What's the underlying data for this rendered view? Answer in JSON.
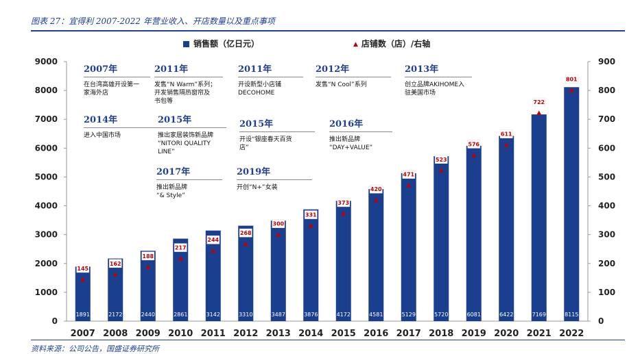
{
  "header": {
    "title": "图表 27：宜得利 2007-2022 年营业收入、开店数量以及重点事项"
  },
  "footer": {
    "source": "资料来源：公司公告，国盛证券研究所"
  },
  "legend": {
    "bar_label": "销售额（亿日元）",
    "line_label": "店铺数（店）/右轴"
  },
  "colors": {
    "bar": "#1a3f8f",
    "marker": "#c00000",
    "title": "#1f3f8f"
  },
  "chart_data": {
    "type": "bar",
    "title": "宜得利 2007-2022 年营业收入、开店数量以及重点事项",
    "categories": [
      "2007",
      "2008",
      "2009",
      "2010",
      "2011",
      "2012",
      "2013",
      "2014",
      "2015",
      "2016",
      "2017",
      "2018",
      "2019",
      "2020",
      "2021",
      "2022"
    ],
    "series": [
      {
        "name": "销售额（亿日元）",
        "axis": "left",
        "type": "bar",
        "values": [
          1891,
          2172,
          2440,
          2861,
          3142,
          3310,
          3487,
          3876,
          4172,
          4581,
          5129,
          5720,
          6081,
          6422,
          7169,
          8115
        ]
      },
      {
        "name": "店铺数（店）",
        "axis": "right",
        "type": "marker",
        "values": [
          145,
          162,
          188,
          217,
          244,
          268,
          300,
          331,
          373,
          420,
          471,
          523,
          576,
          611,
          722,
          801
        ]
      }
    ],
    "ylim_left": [
      0,
      9000
    ],
    "ylim_right": [
      0,
      900
    ],
    "yticks_left": [
      "0",
      "1000",
      "2000",
      "3000",
      "4000",
      "5000",
      "6000",
      "7000",
      "8000",
      "9000"
    ],
    "yticks_right": [
      "0",
      "100",
      "200",
      "300",
      "400",
      "500",
      "600",
      "700",
      "800",
      "900"
    ],
    "annotations": [
      {
        "year": "2007年",
        "text": "在台湾高雄开设第一\n家海外店"
      },
      {
        "year": "2011年",
        "text": "发售“N Warm”系列；\n开发销售隔热窗帘及\n书包等"
      },
      {
        "year": "2011年",
        "text": "开设新型小店铺\nDECOHOME"
      },
      {
        "year": "2012年",
        "text": "发售“N Cool”系列"
      },
      {
        "year": "2013年",
        "text": "创立品牌AKIHOME入\n驻美国市场"
      },
      {
        "year": "2014年",
        "text": "进入中国市场"
      },
      {
        "year": "2015年",
        "text": "推出家居装饰新品牌\n“NITORI QUALITY\nLINE”"
      },
      {
        "year": "2015年",
        "text": "开设“银座春天百货\n店”"
      },
      {
        "year": "2016年",
        "text": "推出新品牌\n“DAY+VALUE”"
      },
      {
        "year": "2017年",
        "text": "推出新品牌\n“& Style”"
      },
      {
        "year": "2019年",
        "text": "开创“N+”女装"
      }
    ]
  }
}
